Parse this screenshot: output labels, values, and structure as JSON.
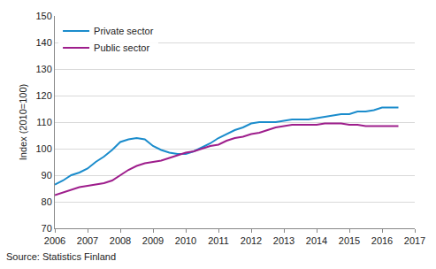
{
  "chart_data": {
    "type": "line",
    "y_label": "Index (2010=100)",
    "source": "Source: Statistics Finland",
    "x": [
      2006.0,
      2006.25,
      2006.5,
      2006.75,
      2007.0,
      2007.25,
      2007.5,
      2007.75,
      2008.0,
      2008.25,
      2008.5,
      2008.75,
      2009.0,
      2009.25,
      2009.5,
      2009.75,
      2010.0,
      2010.25,
      2010.5,
      2010.75,
      2011.0,
      2011.25,
      2011.5,
      2011.75,
      2012.0,
      2012.25,
      2012.5,
      2012.75,
      2013.0,
      2013.25,
      2013.5,
      2013.75,
      2014.0,
      2014.25,
      2014.5,
      2014.75,
      2015.0,
      2015.25,
      2015.5,
      2015.75,
      2016.0,
      2016.25,
      2016.5
    ],
    "series": [
      {
        "name": "Private sector",
        "color": "#1b8ccc",
        "values": [
          86.5,
          88,
          90,
          91,
          92.5,
          95,
          97,
          99.5,
          102.5,
          103.5,
          104,
          103.5,
          101,
          99.5,
          98.5,
          98,
          98,
          99,
          100.5,
          102,
          104,
          105.5,
          107,
          108,
          109.5,
          110,
          110,
          110,
          110.5,
          111,
          111,
          111,
          111.5,
          112,
          112.5,
          113,
          113,
          114,
          114,
          114.5,
          115.5,
          115.5,
          115.5
        ]
      },
      {
        "name": "Public sector",
        "color": "#9e1e8c",
        "values": [
          82.5,
          83.5,
          84.5,
          85.5,
          86,
          86.5,
          87,
          88,
          90,
          92,
          93.5,
          94.5,
          95,
          95.5,
          96.5,
          97.5,
          98.5,
          99,
          100,
          101,
          101.5,
          103,
          104,
          104.5,
          105.5,
          106,
          107,
          108,
          108.5,
          109,
          109,
          109,
          109,
          109.5,
          109.5,
          109.5,
          109,
          109,
          108.5,
          108.5,
          108.5,
          108.5,
          108.5
        ]
      }
    ],
    "xlim": [
      2006,
      2017
    ],
    "xticks": [
      2006,
      2007,
      2008,
      2009,
      2010,
      2011,
      2012,
      2013,
      2014,
      2015,
      2016,
      2017
    ],
    "ylim": [
      70,
      150
    ],
    "yticks": [
      70,
      80,
      90,
      100,
      110,
      120,
      130,
      140,
      150
    ],
    "grid": true,
    "legend": "upper left"
  }
}
